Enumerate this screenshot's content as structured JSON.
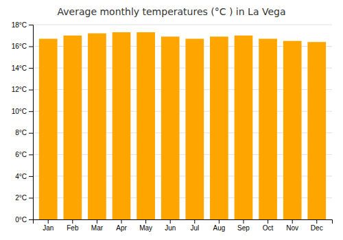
{
  "chart_data": {
    "type": "bar",
    "title": "Average monthly temperatures (°C ) in La Vega",
    "categories": [
      "Jan",
      "Feb",
      "Mar",
      "Apr",
      "May",
      "Jun",
      "Jul",
      "Aug",
      "Sep",
      "Oct",
      "Nov",
      "Dec"
    ],
    "values": [
      16.7,
      17.0,
      17.2,
      17.3,
      17.3,
      16.9,
      16.7,
      16.9,
      17.0,
      16.7,
      16.5,
      16.4
    ],
    "color": "#FFA500",
    "ylim": [
      0,
      18
    ],
    "yticks": [
      {
        "value": 0,
        "label": "0°C"
      },
      {
        "value": 2,
        "label": "2°C"
      },
      {
        "value": 4,
        "label": "4°C"
      },
      {
        "value": 6,
        "label": "6°C"
      },
      {
        "value": 8,
        "label": "8°C"
      },
      {
        "value": 10,
        "label": "10°C"
      },
      {
        "value": 12,
        "label": "12°C"
      },
      {
        "value": 14,
        "label": "14°C"
      },
      {
        "value": 16,
        "label": "16°C"
      },
      {
        "value": 18,
        "label": "18°C"
      }
    ],
    "grid": true
  }
}
